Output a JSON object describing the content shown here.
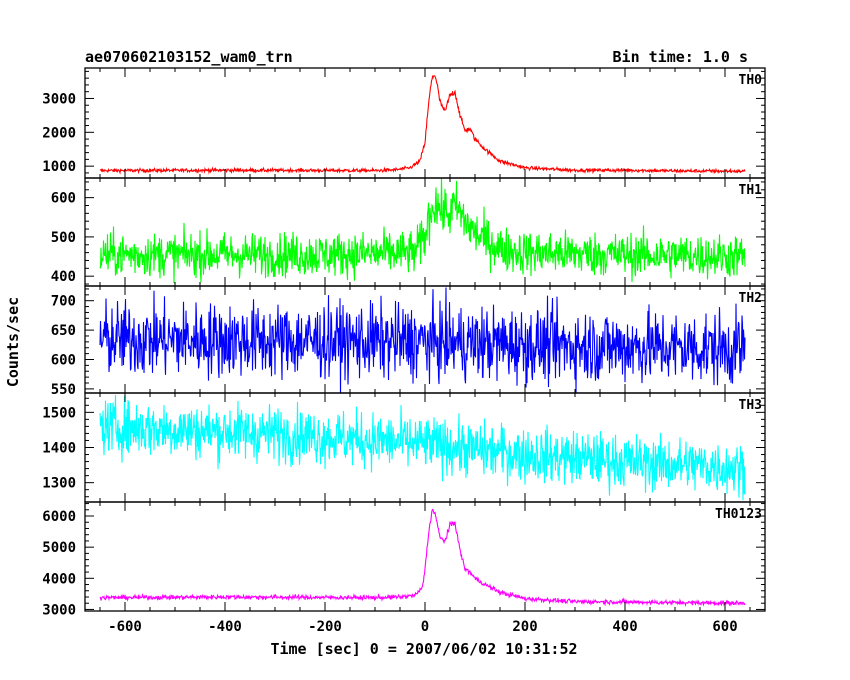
{
  "header": {
    "observation_id": "ae070602103152_wam0_trn",
    "bin_time": "Bin time: 1.0 s"
  },
  "chart_data": {
    "type": "line",
    "title": "ae070602103152_wam0_trn",
    "subtitle": "Bin time: 1.0 s",
    "xlabel": "Time [sec] 0 = 2007/06/02 10:31:52",
    "ylabel": "Counts/sec",
    "xlim": [
      -680,
      680
    ],
    "xticks": [
      -600,
      -400,
      -200,
      0,
      200,
      400,
      600
    ],
    "grid": false,
    "panels": [
      {
        "name": "TH0",
        "color": "#ff0000",
        "ylim": [
          650,
          3900
        ],
        "yticks": [
          1000,
          2000,
          3000
        ],
        "x": [
          -650,
          -400,
          -100,
          -60,
          -30,
          -10,
          0,
          5,
          10,
          15,
          20,
          25,
          30,
          40,
          50,
          60,
          70,
          80,
          90,
          100,
          120,
          150,
          200,
          300,
          400,
          500,
          640
        ],
        "y": [
          870,
          880,
          870,
          890,
          950,
          1150,
          1700,
          2500,
          3200,
          3650,
          3700,
          3350,
          2900,
          2600,
          3100,
          3200,
          2500,
          2050,
          2100,
          1800,
          1500,
          1150,
          950,
          880,
          880,
          860,
          850
        ],
        "noise": 25
      },
      {
        "name": "TH1",
        "color": "#00ff00",
        "ylim": [
          375,
          650
        ],
        "yticks": [
          400,
          500,
          600
        ],
        "x": [
          -650,
          -200,
          -20,
          0,
          10,
          20,
          30,
          50,
          60,
          80,
          100,
          150,
          200,
          400,
          640
        ],
        "y": [
          455,
          455,
          460,
          500,
          560,
          590,
          570,
          560,
          580,
          540,
          510,
          470,
          460,
          455,
          450
        ],
        "noise": 28
      },
      {
        "name": "TH2",
        "color": "#0000ff",
        "ylim": [
          543,
          725
        ],
        "yticks": [
          550,
          600,
          650,
          700
        ],
        "x": [
          -650,
          -300,
          0,
          200,
          400,
          640
        ],
        "y": [
          635,
          632,
          630,
          625,
          622,
          618
        ],
        "noise": 32
      },
      {
        "name": "TH3",
        "color": "#00ffff",
        "ylim": [
          1245,
          1555
        ],
        "yticks": [
          1300,
          1400,
          1500
        ],
        "x": [
          -650,
          -300,
          0,
          200,
          400,
          600,
          640
        ],
        "y": [
          1460,
          1440,
          1410,
          1380,
          1360,
          1345,
          1340
        ],
        "noise": 40
      },
      {
        "name": "TH0123",
        "color": "#ff00ff",
        "ylim": [
          2950,
          6450
        ],
        "yticks": [
          3000,
          4000,
          5000,
          6000
        ],
        "x": [
          -650,
          -400,
          -100,
          -50,
          -20,
          -5,
          0,
          5,
          10,
          15,
          20,
          25,
          30,
          40,
          50,
          60,
          70,
          80,
          90,
          100,
          120,
          150,
          200,
          300,
          400,
          500,
          640
        ],
        "y": [
          3380,
          3400,
          3380,
          3400,
          3450,
          3700,
          4300,
          5100,
          5800,
          6200,
          6100,
          5700,
          5300,
          5200,
          5700,
          5800,
          4900,
          4300,
          4200,
          4000,
          3800,
          3550,
          3350,
          3250,
          3240,
          3220,
          3200
        ],
        "noise": 35
      }
    ]
  }
}
